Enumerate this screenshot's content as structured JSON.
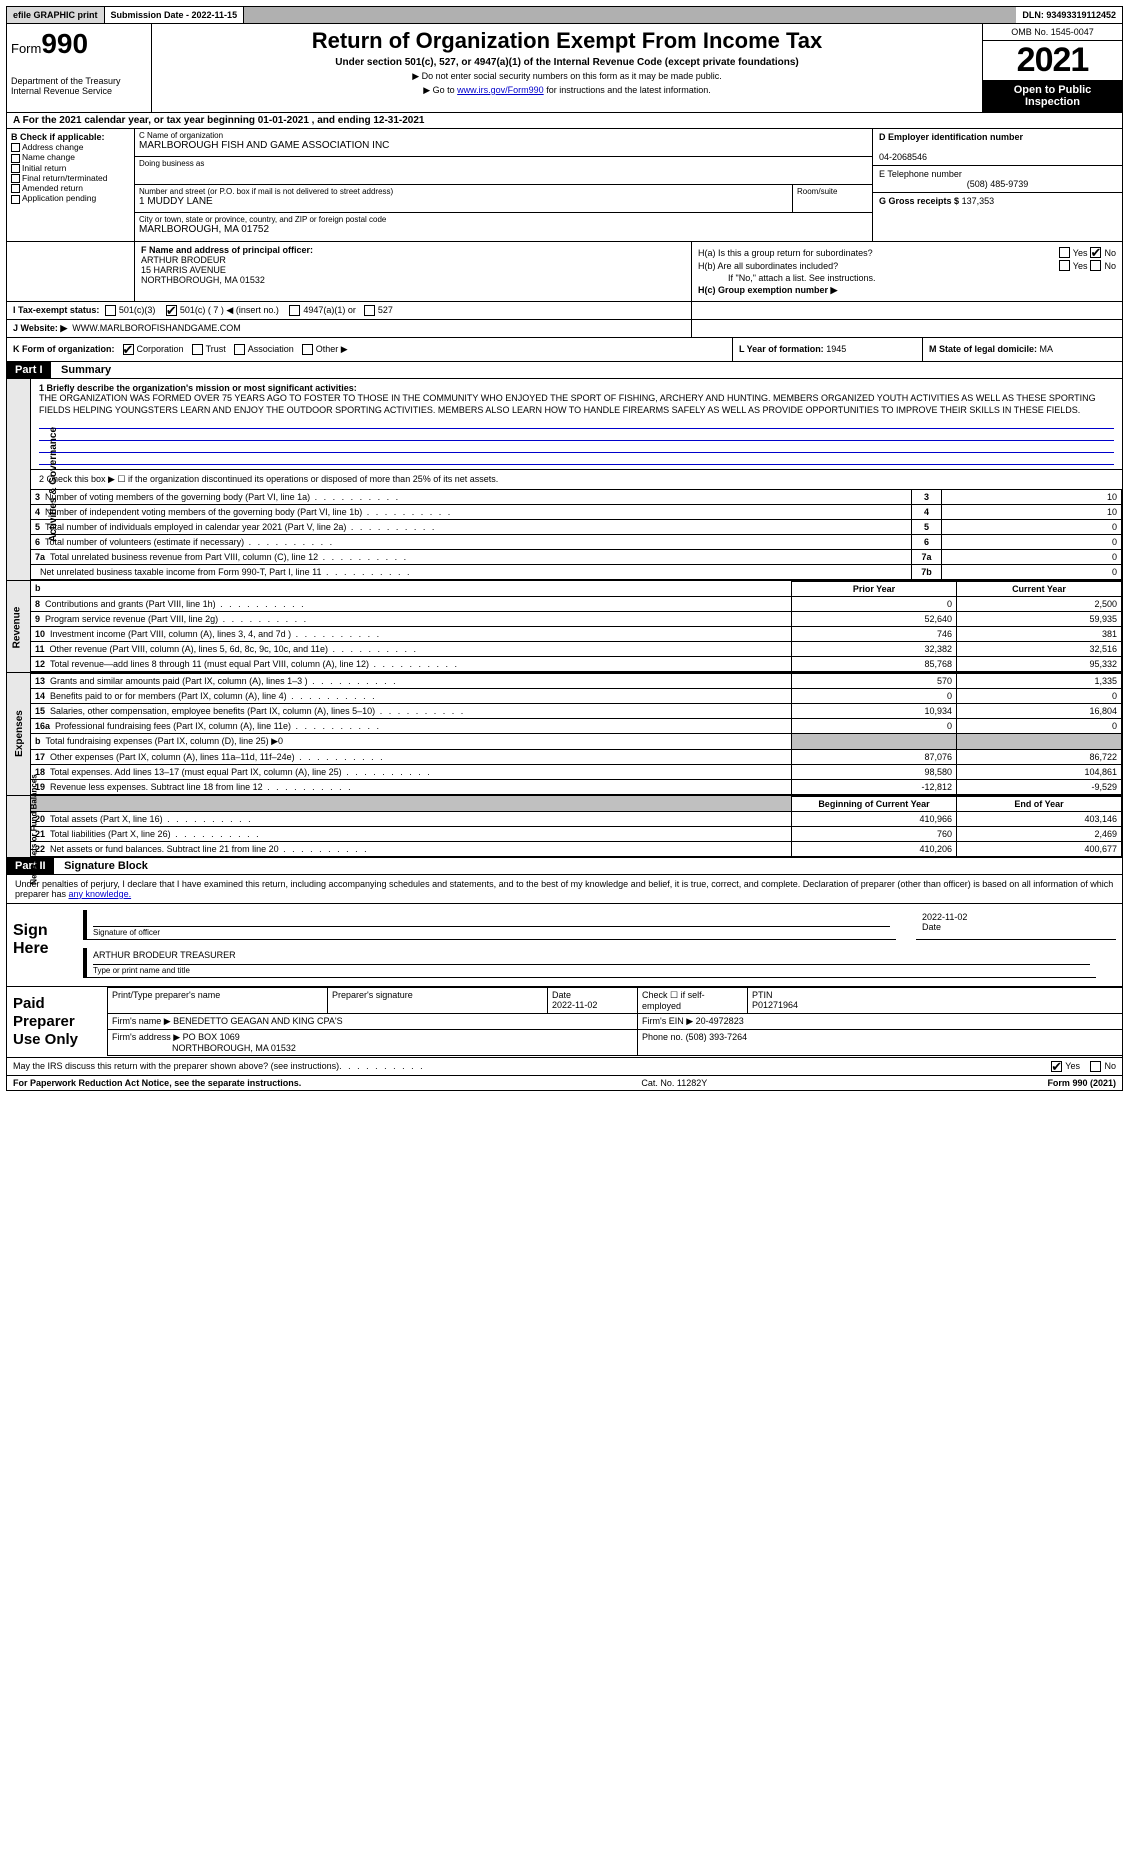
{
  "topbar": {
    "efile": "efile GRAPHIC print",
    "submission": "Submission Date - 2022-11-15",
    "dln": "DLN: 93493319112452"
  },
  "header": {
    "form_label": "Form",
    "form_num": "990",
    "dept": "Department of the Treasury",
    "irs": "Internal Revenue Service",
    "title": "Return of Organization Exempt From Income Tax",
    "subtitle": "Under section 501(c), 527, or 4947(a)(1) of the Internal Revenue Code (except private foundations)",
    "note1": "▶ Do not enter social security numbers on this form as it may be made public.",
    "note2_pre": "▶ Go to ",
    "note2_link": "www.irs.gov/Form990",
    "note2_post": " for instructions and the latest information.",
    "omb": "OMB No. 1545-0047",
    "year": "2021",
    "open": "Open to Public Inspection"
  },
  "row_a": {
    "text_pre": "A For the 2021 calendar year, or tax year beginning ",
    "begin": "01-01-2021",
    "mid": " , and ending ",
    "end": "12-31-2021"
  },
  "col_b": {
    "hdr": "B Check if applicable:",
    "items": [
      "Address change",
      "Name change",
      "Initial return",
      "Final return/terminated",
      "Amended return",
      "Application pending"
    ]
  },
  "col_c": {
    "name_lbl": "C Name of organization",
    "name": "MARLBOROUGH FISH AND GAME ASSOCIATION INC",
    "dba_lbl": "Doing business as",
    "dba": "",
    "addr_lbl": "Number and street (or P.O. box if mail is not delivered to street address)",
    "addr": "1 MUDDY LANE",
    "suite_lbl": "Room/suite",
    "city_lbl": "City or town, state or province, country, and ZIP or foreign postal code",
    "city": "MARLBOROUGH, MA  01752"
  },
  "col_d": {
    "ein_lbl": "D Employer identification number",
    "ein": "04-2068546",
    "tel_lbl": "E Telephone number",
    "tel": "(508) 485-9739",
    "gross_lbl": "G Gross receipts $",
    "gross": "137,353"
  },
  "col_f": {
    "lbl": "F Name and address of principal officer:",
    "name": "ARTHUR BRODEUR",
    "addr1": "15 HARRIS AVENUE",
    "addr2": "NORTHBOROUGH, MA  01532"
  },
  "col_h": {
    "ha": "H(a)  Is this a group return for subordinates?",
    "hb": "H(b)  Are all subordinates included?",
    "hb_note": "If \"No,\" attach a list. See instructions.",
    "hc": "H(c)  Group exemption number ▶",
    "yes": "Yes",
    "no": "No"
  },
  "row_i": {
    "lbl": "I   Tax-exempt status:",
    "opts": [
      "501(c)(3)",
      "501(c) ( 7 ) ◀ (insert no.)",
      "4947(a)(1) or",
      "527"
    ]
  },
  "row_j": {
    "lbl": "J   Website: ▶",
    "val": "WWW.MARLBOROFISHANDGAME.COM"
  },
  "row_k": {
    "lbl": "K Form of organization:",
    "opts": [
      "Corporation",
      "Trust",
      "Association",
      "Other ▶"
    ],
    "l_lbl": "L Year of formation:",
    "l_val": "1945",
    "m_lbl": "M State of legal domicile:",
    "m_val": "MA"
  },
  "part1": {
    "hdr": "Part I",
    "title": "Summary",
    "mission_lbl": "1  Briefly describe the organization's mission or most significant activities:",
    "mission": "THE ORGANIZATION WAS FORMED OVER 75 YEARS AGO TO FOSTER TO THOSE IN THE COMMUNITY WHO ENJOYED THE SPORT OF FISHING, ARCHERY AND HUNTING. MEMBERS ORGANIZED YOUTH ACTIVITIES AS WELL AS THESE SPORTING FIELDS HELPING YOUNGSTERS LEARN AND ENJOY THE OUTDOOR SPORTING ACTIVITIES. MEMBERS ALSO LEARN HOW TO HANDLE FIREARMS SAFELY AS WELL AS PROVIDE OPPORTUNITIES TO IMPROVE THEIR SKILLS IN THESE FIELDS.",
    "line2": "2    Check this box ▶ ☐  if the organization discontinued its operations or disposed of more than 25% of its net assets.",
    "governance_rows": [
      {
        "n": "3",
        "d": "Number of voting members of the governing body (Part VI, line 1a)",
        "num": "3",
        "v": "10"
      },
      {
        "n": "4",
        "d": "Number of independent voting members of the governing body (Part VI, line 1b)",
        "num": "4",
        "v": "10"
      },
      {
        "n": "5",
        "d": "Total number of individuals employed in calendar year 2021 (Part V, line 2a)",
        "num": "5",
        "v": "0"
      },
      {
        "n": "6",
        "d": "Total number of volunteers (estimate if necessary)",
        "num": "6",
        "v": "0"
      },
      {
        "n": "7a",
        "d": "Total unrelated business revenue from Part VIII, column (C), line 12",
        "num": "7a",
        "v": "0"
      },
      {
        "n": "",
        "d": "Net unrelated business taxable income from Form 990-T, Part I, line 11",
        "num": "7b",
        "v": "0"
      }
    ],
    "py_hdr": "Prior Year",
    "cy_hdr": "Current Year",
    "revenue_rows": [
      {
        "n": "8",
        "d": "Contributions and grants (Part VIII, line 1h)",
        "py": "0",
        "cy": "2,500"
      },
      {
        "n": "9",
        "d": "Program service revenue (Part VIII, line 2g)",
        "py": "52,640",
        "cy": "59,935"
      },
      {
        "n": "10",
        "d": "Investment income (Part VIII, column (A), lines 3, 4, and 7d )",
        "py": "746",
        "cy": "381"
      },
      {
        "n": "11",
        "d": "Other revenue (Part VIII, column (A), lines 5, 6d, 8c, 9c, 10c, and 11e)",
        "py": "32,382",
        "cy": "32,516"
      },
      {
        "n": "12",
        "d": "Total revenue—add lines 8 through 11 (must equal Part VIII, column (A), line 12)",
        "py": "85,768",
        "cy": "95,332"
      }
    ],
    "expense_rows": [
      {
        "n": "13",
        "d": "Grants and similar amounts paid (Part IX, column (A), lines 1–3 )",
        "py": "570",
        "cy": "1,335"
      },
      {
        "n": "14",
        "d": "Benefits paid to or for members (Part IX, column (A), line 4)",
        "py": "0",
        "cy": "0"
      },
      {
        "n": "15",
        "d": "Salaries, other compensation, employee benefits (Part IX, column (A), lines 5–10)",
        "py": "10,934",
        "cy": "16,804"
      },
      {
        "n": "16a",
        "d": "Professional fundraising fees (Part IX, column (A), line 11e)",
        "py": "0",
        "cy": "0"
      },
      {
        "n": "b",
        "d": "Total fundraising expenses (Part IX, column (D), line 25) ▶0",
        "py": "",
        "cy": "",
        "shade": true
      },
      {
        "n": "17",
        "d": "Other expenses (Part IX, column (A), lines 11a–11d, 11f–24e)",
        "py": "87,076",
        "cy": "86,722"
      },
      {
        "n": "18",
        "d": "Total expenses. Add lines 13–17 (must equal Part IX, column (A), line 25)",
        "py": "98,580",
        "cy": "104,861"
      },
      {
        "n": "19",
        "d": "Revenue less expenses. Subtract line 18 from line 12",
        "py": "-12,812",
        "cy": "-9,529"
      }
    ],
    "bcy_hdr": "Beginning of Current Year",
    "eoy_hdr": "End of Year",
    "net_rows": [
      {
        "n": "20",
        "d": "Total assets (Part X, line 16)",
        "py": "410,966",
        "cy": "403,146"
      },
      {
        "n": "21",
        "d": "Total liabilities (Part X, line 26)",
        "py": "760",
        "cy": "2,469"
      },
      {
        "n": "22",
        "d": "Net assets or fund balances. Subtract line 21 from line 20",
        "py": "410,206",
        "cy": "400,677"
      }
    ],
    "vtabs": [
      "Activities & Governance",
      "Revenue",
      "Expenses",
      "Net Assets or Fund Balances"
    ]
  },
  "part2": {
    "hdr": "Part II",
    "title": "Signature Block",
    "intro": "Under penalties of perjury, I declare that I have examined this return, including accompanying schedules and statements, and to the best of my knowledge and belief, it is true, correct, and complete. Declaration of preparer (other than officer) is based on all information of which preparer has ",
    "intro_link": "any knowledge.",
    "sign_here": "Sign Here",
    "sig_officer_cap": "Signature of officer",
    "sig_date": "2022-11-02",
    "date_cap": "Date",
    "officer_name": "ARTHUR BRODEUR  TREASURER",
    "officer_cap": "Type or print name and title",
    "paid": "Paid Preparer Use Only",
    "prep_name_lbl": "Print/Type preparer's name",
    "prep_sig_lbl": "Preparer's signature",
    "prep_date_lbl": "Date",
    "prep_date": "2022-11-02",
    "check_if": "Check ☐ if self-employed",
    "ptin_lbl": "PTIN",
    "ptin": "P01271964",
    "firm_name_lbl": "Firm's name    ▶",
    "firm_name": "BENEDETTO GEAGAN AND KING CPA'S",
    "firm_ein_lbl": "Firm's EIN ▶",
    "firm_ein": "20-4972823",
    "firm_addr_lbl": "Firm's address ▶",
    "firm_addr": "PO BOX 1069",
    "firm_addr2": "NORTHBOROUGH, MA  01532",
    "phone_lbl": "Phone no.",
    "phone": "(508) 393-7264",
    "discuss": "May the IRS discuss this return with the preparer shown above? (see instructions)",
    "yes": "Yes",
    "no": "No"
  },
  "footer": {
    "pra": "For Paperwork Reduction Act Notice, see the separate instructions.",
    "cat": "Cat. No. 11282Y",
    "form": "Form 990 (2021)"
  }
}
